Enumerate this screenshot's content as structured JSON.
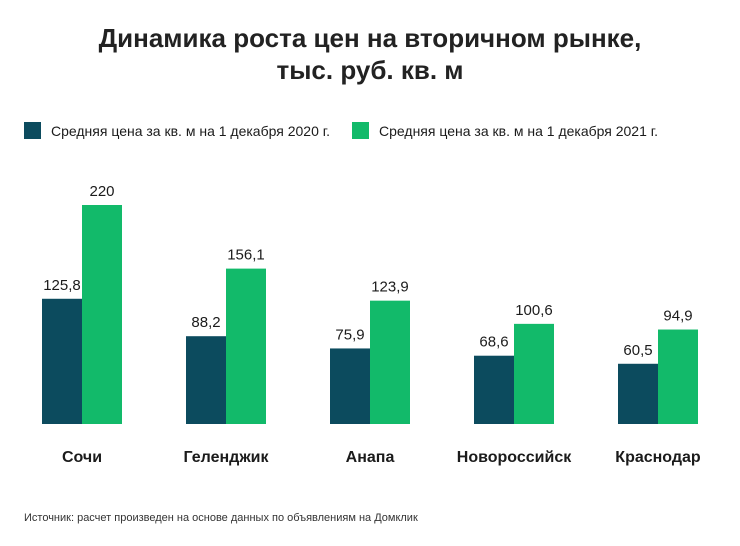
{
  "title": {
    "line1": "Динамика роста цен на вторичном рынке,",
    "line2": "тыс. руб. кв. м"
  },
  "colors": {
    "series_2020": "#0c4b5e",
    "series_2021": "#12ba6a"
  },
  "source": "Источник: расчет произведен на основе данных по объявлениям на Домклик",
  "chart_data": {
    "type": "bar",
    "categories": [
      "Сочи",
      "Геленджик",
      "Анапа",
      "Новороссийск",
      "Краснодар"
    ],
    "series": [
      {
        "name": "Средняя цена за кв. м на 1 декабря 2020 г.",
        "values": [
          125.8,
          88.2,
          75.9,
          68.6,
          60.5
        ],
        "labels": [
          "125,8",
          "88,2",
          "75,9",
          "68,6",
          "60,5"
        ]
      },
      {
        "name": "Средняя цена за кв. м на 1 декабря 2021 г.",
        "values": [
          220,
          156.1,
          123.9,
          100.6,
          94.9
        ],
        "labels": [
          "220",
          "156,1",
          "123,9",
          "100,6",
          "94,9"
        ]
      }
    ],
    "ylim": [
      0,
      220
    ],
    "grid": false,
    "legend": "top-left"
  }
}
